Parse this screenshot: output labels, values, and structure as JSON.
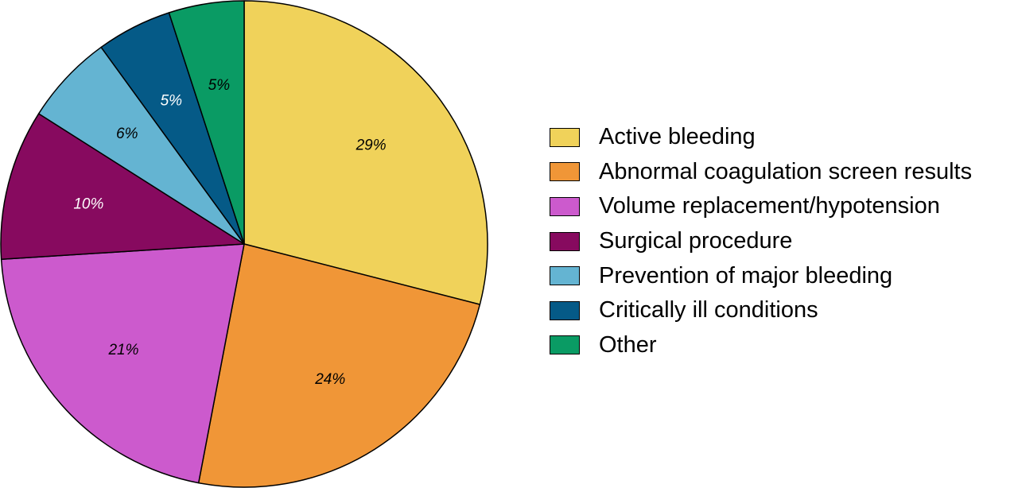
{
  "chart_data": {
    "type": "pie",
    "title": "",
    "start_angle": "12 o'clock",
    "direction": "clockwise",
    "legend_placement": "right",
    "slices": [
      {
        "name": "Active bleeding",
        "value": 29,
        "label": "29%",
        "color": "#F0D25A",
        "label_color": "#000000"
      },
      {
        "name": "Abnormal coagulation screen results",
        "value": 24,
        "label": "24%",
        "color": "#F09637",
        "label_color": "#000000"
      },
      {
        "name": "Volume replacement/hypotension",
        "value": 21,
        "label": "21%",
        "color": "#CC5ACD",
        "label_color": "#000000"
      },
      {
        "name": "Surgical procedure",
        "value": 10,
        "label": "10%",
        "color": "#870A5F",
        "label_color": "#ffffff"
      },
      {
        "name": "Prevention of major bleeding",
        "value": 6,
        "label": "6%",
        "color": "#64B4D2",
        "label_color": "#000000"
      },
      {
        "name": "Critically ill conditions",
        "value": 5,
        "label": "5%",
        "color": "#055A87",
        "label_color": "#ffffff"
      },
      {
        "name": "Other",
        "value": 5,
        "label": "5%",
        "color": "#0A9B64",
        "label_color": "#000000"
      }
    ]
  }
}
